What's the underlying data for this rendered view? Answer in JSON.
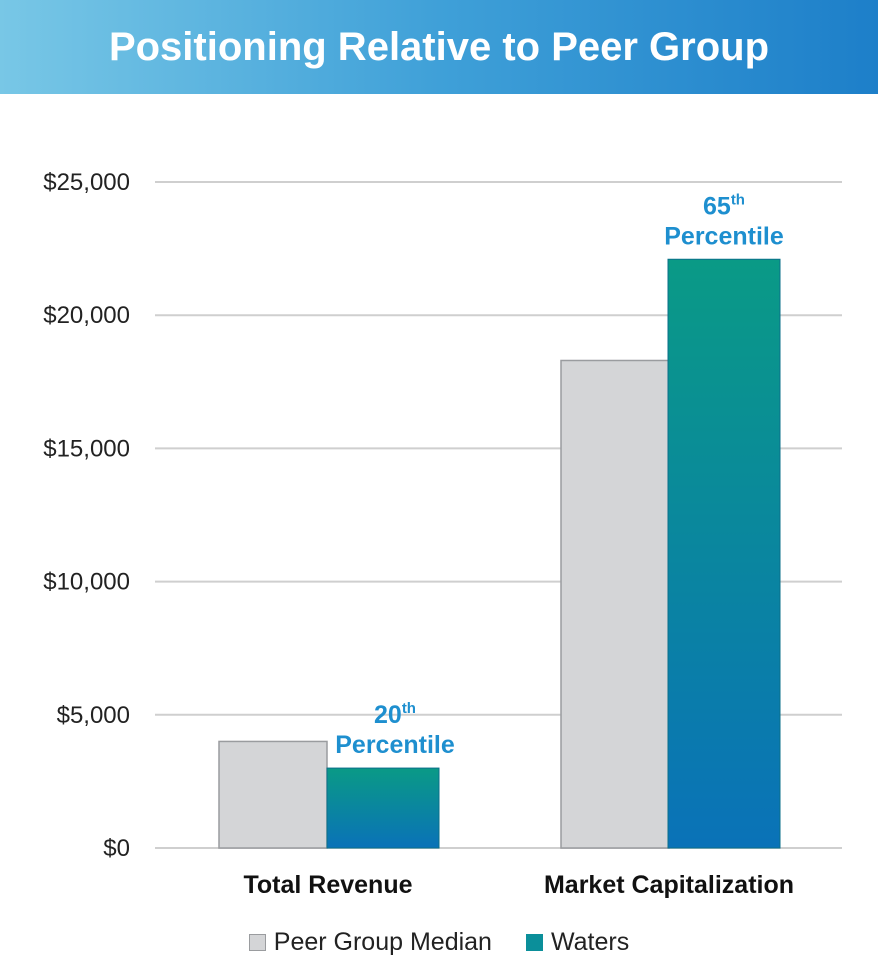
{
  "header": {
    "title": "Positioning Relative to Peer Group"
  },
  "colors": {
    "header_start": "#78c7e6",
    "header_end": "#1d7fc9",
    "peer_fill": "#d4d5d7",
    "waters_top": "#0a9a86",
    "waters_bottom": "#0a72b8",
    "annotation": "#1e8fcf"
  },
  "chart_data": {
    "type": "bar",
    "title": "Positioning Relative to Peer Group",
    "xlabel": "",
    "ylabel": "",
    "categories": [
      "Total Revenue",
      "Market Capitalization"
    ],
    "series": [
      {
        "name": "Peer Group Median",
        "values": [
          4000,
          18300
        ]
      },
      {
        "name": "Waters",
        "values": [
          3000,
          22100
        ]
      }
    ],
    "ylim": [
      0,
      25000
    ],
    "yticks": [
      0,
      5000,
      10000,
      15000,
      20000,
      25000
    ],
    "ytick_labels": [
      "$0",
      "$5,000",
      "$10,000",
      "$15,000",
      "$20,000",
      "$25,000"
    ],
    "grid": true,
    "legend_position": "bottom",
    "annotations": [
      {
        "category": "Total Revenue",
        "number": "20",
        "suffix": "th",
        "label": "Percentile"
      },
      {
        "category": "Market Capitalization",
        "number": "65",
        "suffix": "th",
        "label": "Percentile"
      }
    ]
  },
  "legend": {
    "items": [
      {
        "label": "Peer Group Median"
      },
      {
        "label": "Waters"
      }
    ]
  }
}
